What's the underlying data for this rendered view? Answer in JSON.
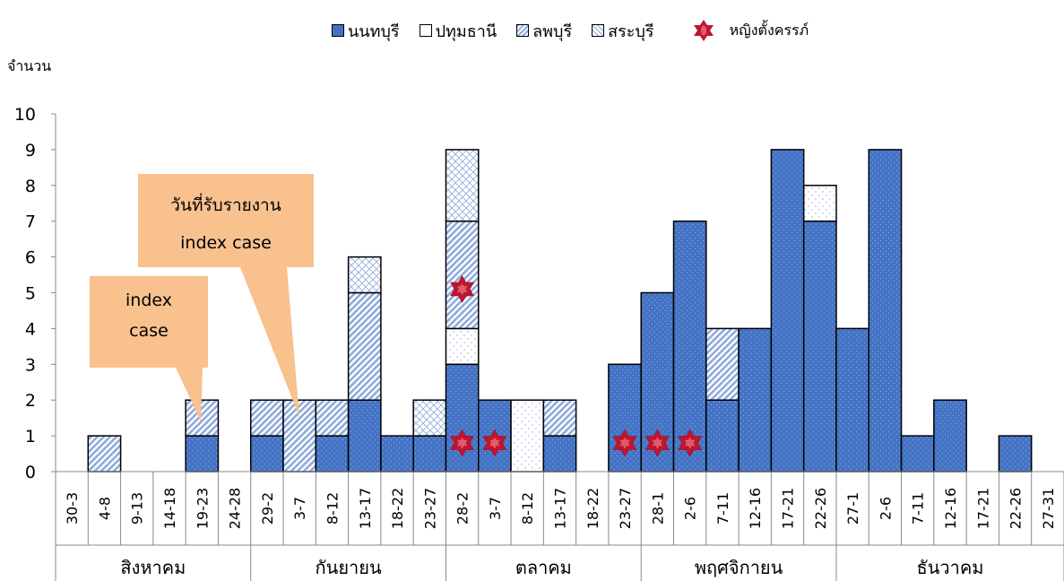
{
  "chart_data": {
    "type": "bar",
    "stacked": true,
    "ylabel": "จำนวน",
    "xlabel": "",
    "ylim": [
      0,
      10
    ],
    "yticks": [
      0,
      1,
      2,
      3,
      4,
      5,
      6,
      7,
      8,
      9,
      10
    ],
    "grid": false,
    "legend_position": "top",
    "categories": [
      "30-3",
      "4-8",
      "9-13",
      "14-18",
      "19-23",
      "24-28",
      "29-2",
      "3-7",
      "8-12",
      "13-17",
      "18-22",
      "23-27",
      "28-2",
      "3-7",
      "8-12",
      "13-17",
      "18-22",
      "23-27",
      "28-1",
      "2-6",
      "7-11",
      "12-16",
      "17-21",
      "22-26",
      "27-1",
      "2-6",
      "7-11",
      "12-16",
      "17-21",
      "22-26",
      "27-31"
    ],
    "month_groups": [
      {
        "label": "สิงหาคม",
        "start": 0,
        "count": 6
      },
      {
        "label": "กันยายน",
        "start": 6,
        "count": 6
      },
      {
        "label": "ตลาคม",
        "start": 12,
        "count": 6
      },
      {
        "label": "พฤศจิกายน",
        "start": 18,
        "count": 6
      },
      {
        "label": "ธันวาคม",
        "start": 24,
        "count": 7
      }
    ],
    "series": [
      {
        "name": "นนทบุรี",
        "color": "#4472c4",
        "pattern": "dots",
        "values": [
          0,
          0,
          0,
          0,
          1,
          0,
          1,
          0,
          1,
          2,
          1,
          1,
          3,
          2,
          0,
          1,
          0,
          3,
          5,
          7,
          2,
          4,
          9,
          7,
          4,
          9,
          1,
          2,
          0,
          1,
          0
        ]
      },
      {
        "name": "ปทุมธานี",
        "color": "#ffffff",
        "pattern": "sparse-dots",
        "values": [
          0,
          0,
          0,
          0,
          0,
          0,
          0,
          0,
          0,
          0,
          0,
          0,
          1,
          0,
          2,
          0,
          0,
          0,
          0,
          0,
          0,
          0,
          0,
          1,
          0,
          0,
          0,
          0,
          0,
          0,
          0
        ]
      },
      {
        "name": "ลพบุรี",
        "color": "#8eaadb",
        "pattern": "diagonal",
        "values": [
          0,
          1,
          0,
          0,
          1,
          0,
          1,
          2,
          1,
          3,
          0,
          0,
          3,
          0,
          0,
          1,
          0,
          0,
          0,
          0,
          2,
          0,
          0,
          0,
          0,
          0,
          0,
          0,
          0,
          0,
          0
        ]
      },
      {
        "name": "สระบุรี",
        "color": "#ffffff",
        "pattern": "crosshatch",
        "values": [
          0,
          0,
          0,
          0,
          0,
          0,
          0,
          0,
          0,
          1,
          0,
          1,
          2,
          0,
          0,
          0,
          0,
          0,
          0,
          0,
          0,
          0,
          0,
          0,
          0,
          0,
          0,
          0,
          0,
          0,
          0
        ]
      }
    ],
    "markers": {
      "name": "หญิงตั้งครรภ์",
      "color": "#c0152f",
      "points": [
        {
          "category_index": 12,
          "y": 0.8
        },
        {
          "category_index": 12,
          "y": 5.1
        },
        {
          "category_index": 13,
          "y": 0.8
        },
        {
          "category_index": 17,
          "y": 0.8
        },
        {
          "category_index": 18,
          "y": 0.8
        },
        {
          "category_index": 19,
          "y": 0.8
        }
      ]
    },
    "annotations": [
      {
        "lines": [
          "index",
          "case"
        ],
        "target_category_index": 4
      },
      {
        "lines": [
          "วันที่รับรายงาน",
          "index case"
        ],
        "target_category_index": 7
      }
    ]
  }
}
